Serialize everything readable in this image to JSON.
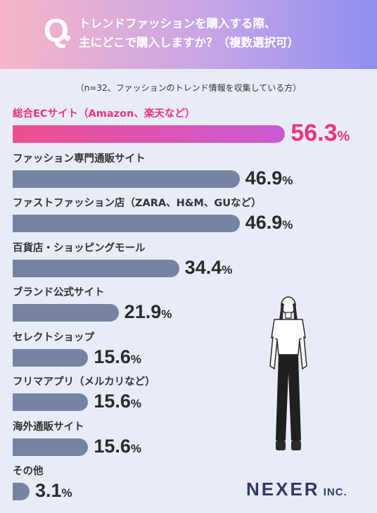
{
  "header": {
    "q_mark": "Q",
    "title_line1": "トレンドファッションを購入する際、",
    "title_line2": "主にどこで購入しますか？（複数選択可）"
  },
  "note": "（n=32、ファッションのトレンド情報を収集している方）",
  "colors": {
    "accent": "#e8347f",
    "bar": "#7684a3",
    "background": "#e8ecf7"
  },
  "chart_data": {
    "type": "bar",
    "orientation": "horizontal",
    "unit": "%",
    "categories": [
      "総合ECサイト（Amazon、楽天など）",
      "ファッション専門通販サイト",
      "ファストファッション店（ZARA、H&M、GUなど）",
      "百貨店・ショッピングモール",
      "ブランド公式サイト",
      "セレクトショップ",
      "フリマアプリ（メルカリなど）",
      "海外通販サイト",
      "その他"
    ],
    "values": [
      56.3,
      46.9,
      46.9,
      34.4,
      21.9,
      15.6,
      15.6,
      15.6,
      3.1
    ],
    "value_labels": [
      "56.3",
      "46.9",
      "46.9",
      "34.4",
      "21.9",
      "15.6",
      "15.6",
      "15.6",
      "3.1"
    ],
    "highlight_index": 0,
    "xlim": [
      0,
      100
    ]
  },
  "logo": {
    "main": "NEXER",
    "sub": " INC."
  }
}
